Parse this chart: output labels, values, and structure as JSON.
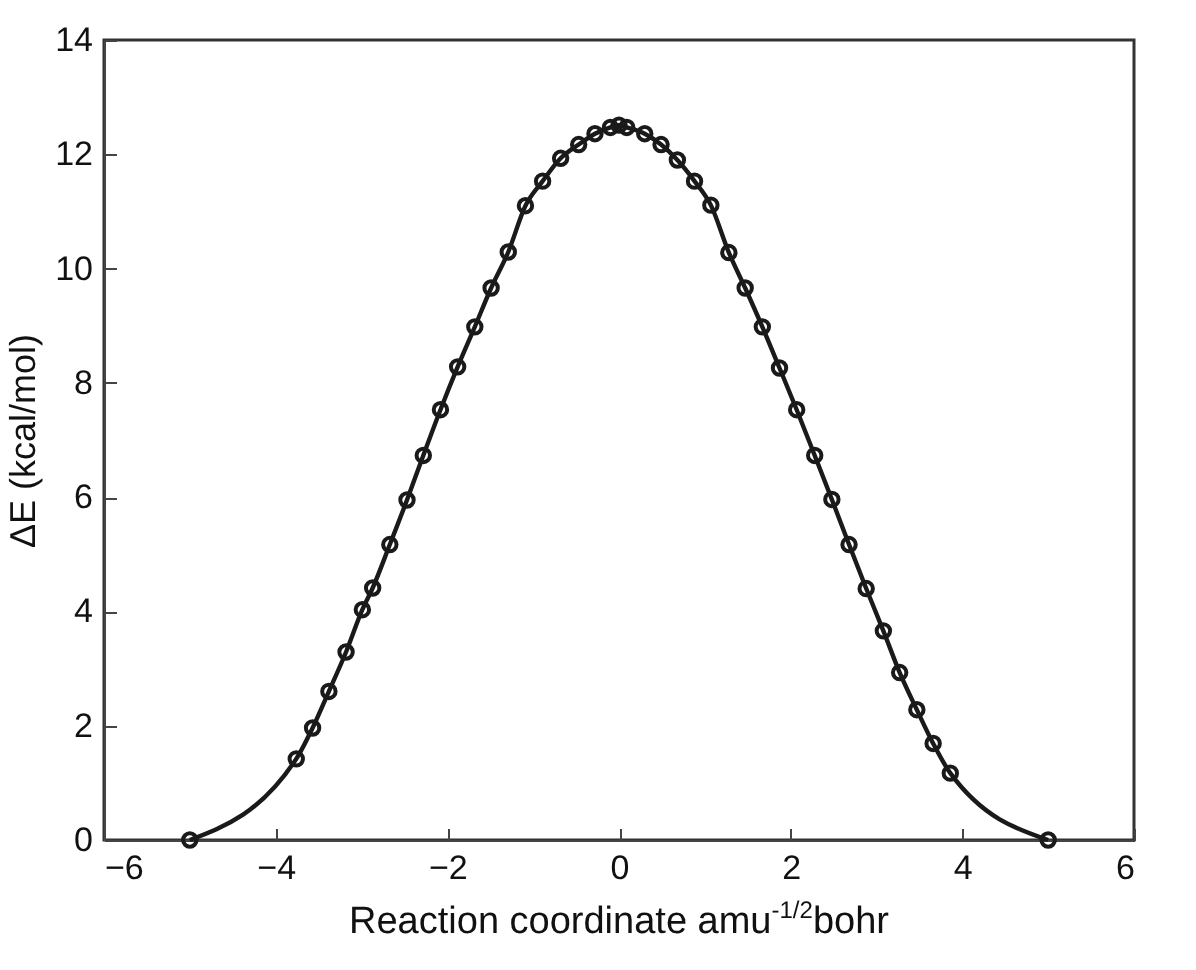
{
  "chart_data": {
    "type": "line",
    "xlabel": "Reaction coordinate amu$^{-1/2}$bohr",
    "ylabel": "ΔE (kcal/mol)",
    "xlim": [
      -6,
      6
    ],
    "xticks": [
      -6,
      -4,
      -2,
      0,
      2,
      4,
      6
    ],
    "ylim": [
      0,
      14
    ],
    "yticks": [
      0,
      2,
      4,
      6,
      8,
      10,
      12,
      14
    ],
    "grid": false,
    "marker": "circle",
    "line_style": "solid",
    "series": [
      {
        "color": "#1a1a1a",
        "x": [
          -5.0,
          -3.76,
          -3.57,
          -3.38,
          -3.18,
          -2.99,
          -2.87,
          -2.67,
          -2.47,
          -2.28,
          -2.08,
          -1.88,
          -1.68,
          -1.49,
          -1.29,
          -1.09,
          -0.89,
          -0.68,
          -0.47,
          -0.28,
          -0.1,
          0.0,
          0.09,
          0.3,
          0.49,
          0.68,
          0.88,
          1.07,
          1.28,
          1.47,
          1.67,
          1.87,
          2.07,
          2.28,
          2.48,
          2.68,
          2.88,
          3.08,
          3.27,
          3.47,
          3.66,
          3.86,
          5.0
        ],
        "values": [
          0,
          1.42,
          1.96,
          2.6,
          3.29,
          4.03,
          4.41,
          5.17,
          5.95,
          6.73,
          7.53,
          8.28,
          8.98,
          9.66,
          10.29,
          11.1,
          11.53,
          11.93,
          12.17,
          12.36,
          12.47,
          12.51,
          12.47,
          12.36,
          12.17,
          11.9,
          11.53,
          11.11,
          10.28,
          9.66,
          8.98,
          8.26,
          7.53,
          6.73,
          5.96,
          5.17,
          4.4,
          3.66,
          2.93,
          2.28,
          1.69,
          1.17,
          0
        ]
      }
    ]
  }
}
